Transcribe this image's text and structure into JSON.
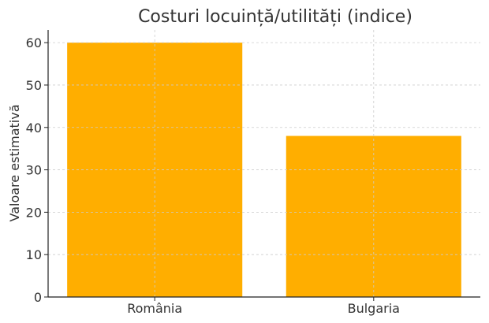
{
  "chart_data": {
    "type": "bar",
    "title": "Costuri locuință/utilități (indice)",
    "xlabel": "",
    "ylabel": "Valoare estimativă",
    "categories": [
      "România",
      "Bulgaria"
    ],
    "values": [
      60,
      38
    ],
    "ylim": [
      0,
      63
    ],
    "yticks": [
      0,
      10,
      20,
      30,
      40,
      50,
      60
    ],
    "grid": true,
    "bar_color": "#FFAE00"
  }
}
